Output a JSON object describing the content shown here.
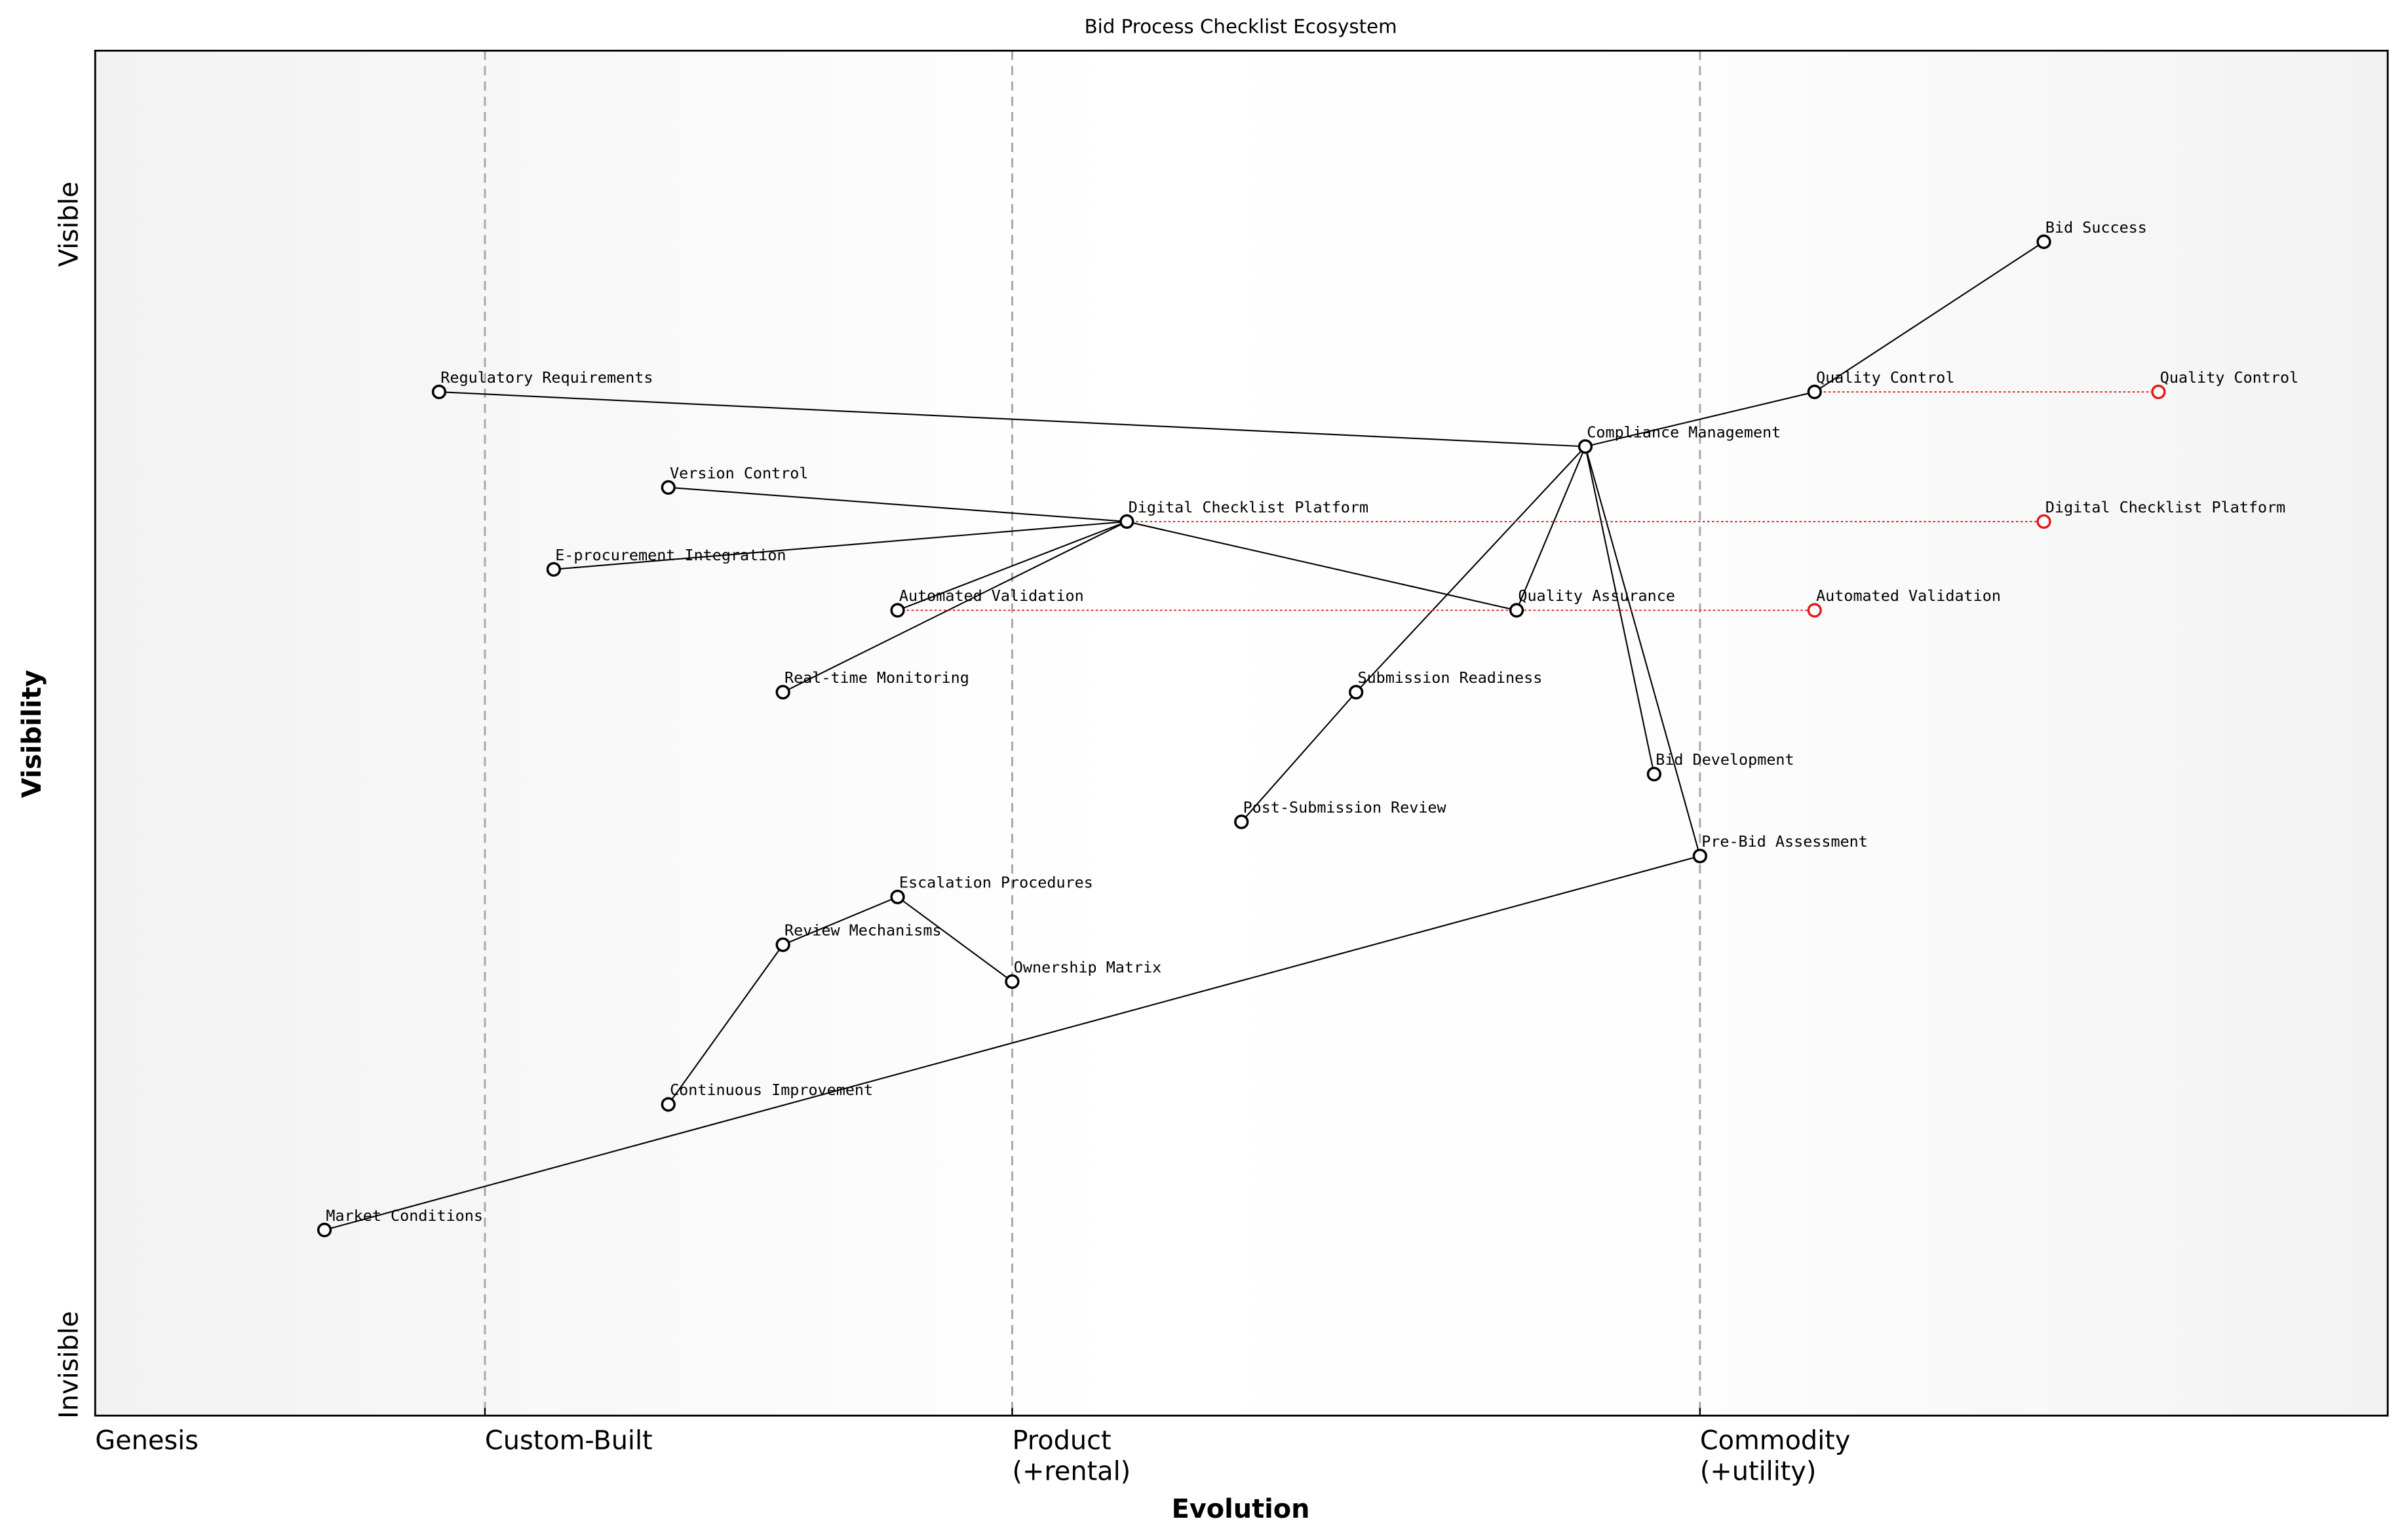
{
  "chart_data": {
    "type": "wardley",
    "title": "Bid Process Checklist Ecosystem",
    "xlabel": "Evolution",
    "ylabel": "Visibility",
    "y_top_label": "Visible",
    "y_bottom_label": "Invisible",
    "xlim": [
      0,
      1
    ],
    "ylim": [
      0,
      1
    ],
    "xticks": [
      {
        "value": 0,
        "label": "Genesis"
      },
      {
        "value": 0.17,
        "label": "Custom-Built"
      },
      {
        "value": 0.4,
        "label": "Product\n(+rental)"
      },
      {
        "value": 0.7,
        "label": "Commodity\n(+utility)"
      }
    ],
    "nodes": [
      {
        "name": "Bid Success",
        "x": 0.85,
        "y": 0.86
      },
      {
        "name": "Regulatory Requirements",
        "x": 0.15,
        "y": 0.75
      },
      {
        "name": "Quality Control",
        "x": 0.75,
        "y": 0.75
      },
      {
        "name": "Compliance Management",
        "x": 0.65,
        "y": 0.71
      },
      {
        "name": "Version Control",
        "x": 0.25,
        "y": 0.68
      },
      {
        "name": "Digital Checklist Platform",
        "x": 0.45,
        "y": 0.655
      },
      {
        "name": "E-procurement Integration",
        "x": 0.2,
        "y": 0.62
      },
      {
        "name": "Automated Validation",
        "x": 0.35,
        "y": 0.59
      },
      {
        "name": "Quality Assurance",
        "x": 0.62,
        "y": 0.59
      },
      {
        "name": "Real-time Monitoring",
        "x": 0.3,
        "y": 0.53
      },
      {
        "name": "Submission Readiness",
        "x": 0.55,
        "y": 0.53
      },
      {
        "name": "Bid Development",
        "x": 0.68,
        "y": 0.47
      },
      {
        "name": "Post-Submission Review",
        "x": 0.5,
        "y": 0.435
      },
      {
        "name": "Pre-Bid Assessment",
        "x": 0.7,
        "y": 0.41
      },
      {
        "name": "Escalation Procedures",
        "x": 0.35,
        "y": 0.38
      },
      {
        "name": "Review Mechanisms",
        "x": 0.3,
        "y": 0.345
      },
      {
        "name": "Ownership Matrix",
        "x": 0.4,
        "y": 0.318
      },
      {
        "name": "Continuous Improvement",
        "x": 0.25,
        "y": 0.228
      },
      {
        "name": "Market Conditions",
        "x": 0.1,
        "y": 0.136
      }
    ],
    "links": [
      [
        "Bid Success",
        "Quality Control"
      ],
      [
        "Quality Control",
        "Compliance Management"
      ],
      [
        "Regulatory Requirements",
        "Compliance Management"
      ],
      [
        "Compliance Management",
        "Quality Assurance"
      ],
      [
        "Compliance Management",
        "Submission Readiness"
      ],
      [
        "Compliance Management",
        "Bid Development"
      ],
      [
        "Compliance Management",
        "Pre-Bid Assessment"
      ],
      [
        "Version Control",
        "Digital Checklist Platform"
      ],
      [
        "E-procurement Integration",
        "Digital Checklist Platform"
      ],
      [
        "Digital Checklist Platform",
        "Real-time Monitoring"
      ],
      [
        "Digital Checklist Platform",
        "Automated Validation"
      ],
      [
        "Digital Checklist Platform",
        "Quality Assurance"
      ],
      [
        "Submission Readiness",
        "Post-Submission Review"
      ],
      [
        "Pre-Bid Assessment",
        "Market Conditions"
      ],
      [
        "Continuous Improvement",
        "Review Mechanisms"
      ],
      [
        "Review Mechanisms",
        "Escalation Procedures"
      ],
      [
        "Escalation Procedures",
        "Ownership Matrix"
      ]
    ],
    "evolutions": [
      {
        "name": "Quality Control",
        "to": 0.9
      },
      {
        "name": "Digital Checklist Platform",
        "to": 0.85
      },
      {
        "name": "Automated Validation",
        "to": 0.75
      }
    ],
    "evolution_color": "#e31a1c",
    "node_color": "#000000"
  }
}
